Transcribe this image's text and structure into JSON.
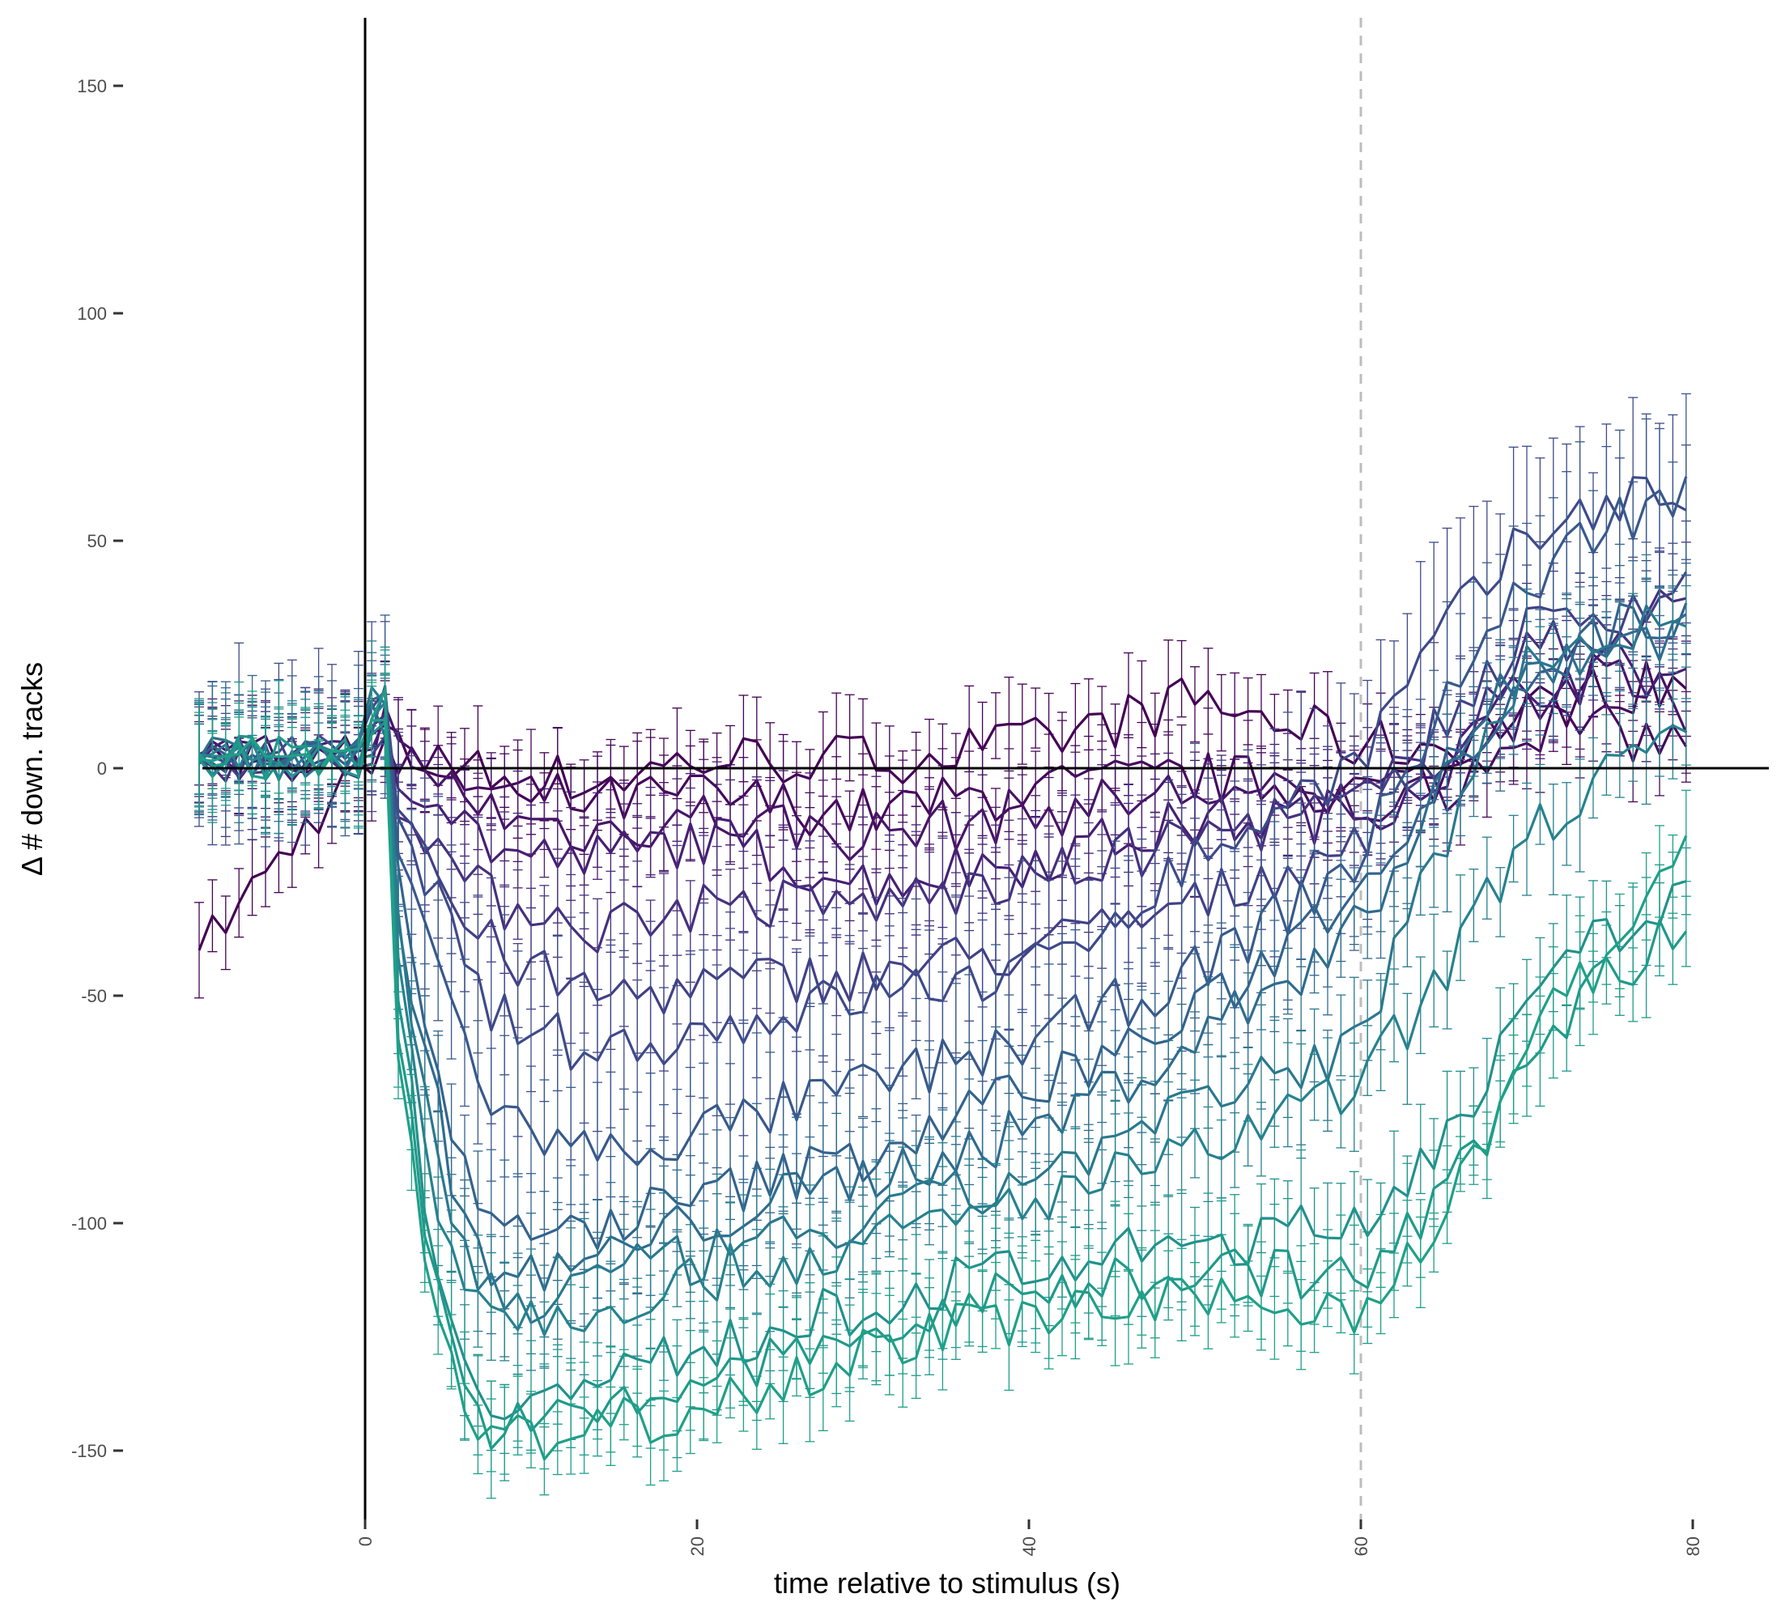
{
  "chart_data": {
    "type": "line",
    "title": "",
    "xlabel": "time relative to stimulus (s)",
    "ylabel": "Δ # down. tracks",
    "xlim": [
      -10,
      80
    ],
    "ylim": [
      -165,
      165
    ],
    "x_ticks": [
      0,
      20,
      40,
      60,
      80
    ],
    "y_ticks": [
      150,
      100,
      50,
      0,
      -50,
      -100,
      -150
    ],
    "x_tick_labels": [
      "0",
      "20",
      "40",
      "60",
      "80"
    ],
    "y_tick_labels": [
      "150",
      "100",
      "50",
      "0",
      "-50",
      "-100",
      "-150"
    ],
    "reference_lines": {
      "vertical_solid_x": 0,
      "vertical_dashed_x": 60,
      "horizontal_solid_y": 0
    },
    "grid": false,
    "legend": "none",
    "error_bars": true,
    "colors": [
      "#440154",
      "#46085C",
      "#481467",
      "#471F73",
      "#46307E",
      "#424086",
      "#3E4A89",
      "#38598C",
      "#33638D",
      "#2F6C8E",
      "#2A788E",
      "#26828E",
      "#21918C",
      "#1F9A8A",
      "#1FA088"
    ],
    "x_sample": [
      -10,
      0,
      1,
      2,
      4,
      6,
      8,
      10,
      14,
      20,
      30,
      40,
      50,
      60,
      65,
      70,
      75,
      80
    ],
    "series": [
      {
        "values": [
          -40,
          2,
          10,
          3,
          1,
          0,
          -2,
          -2,
          -3,
          2,
          2,
          5,
          15,
          5,
          5,
          12,
          18,
          18
        ],
        "error": 10
      },
      {
        "values": [
          3,
          2,
          9,
          2,
          0,
          -3,
          -6,
          -6,
          -8,
          -6,
          -10,
          -5,
          -2,
          -5,
          -2,
          10,
          8,
          5
        ],
        "error": 10
      },
      {
        "values": [
          2,
          3,
          12,
          2,
          -2,
          -5,
          -10,
          -12,
          -14,
          -10,
          -15,
          -10,
          -5,
          -8,
          -5,
          15,
          20,
          12
        ],
        "error": 10
      },
      {
        "values": [
          1,
          2,
          14,
          0,
          -5,
          -12,
          -18,
          -20,
          -20,
          -15,
          -25,
          -20,
          -12,
          -10,
          0,
          18,
          22,
          20
        ],
        "error": 12
      },
      {
        "values": [
          2,
          2,
          15,
          -5,
          -15,
          -25,
          -30,
          -30,
          -35,
          -30,
          -30,
          -25,
          -15,
          -8,
          5,
          25,
          30,
          38
        ],
        "error": 12
      },
      {
        "values": [
          3,
          2,
          16,
          -8,
          -20,
          -35,
          -40,
          -45,
          -50,
          -48,
          -45,
          -40,
          -30,
          -15,
          10,
          30,
          35,
          40
        ],
        "error": 14
      },
      {
        "values": [
          2,
          3,
          18,
          -10,
          -25,
          -45,
          -55,
          -58,
          -62,
          -58,
          -50,
          -45,
          -20,
          2,
          30,
          50,
          60,
          60
        ],
        "error": 20
      },
      {
        "values": [
          2,
          2,
          20,
          -15,
          -40,
          -60,
          -75,
          -80,
          -85,
          -80,
          -70,
          -60,
          -45,
          -20,
          15,
          40,
          55,
          60
        ],
        "error": 18
      },
      {
        "values": [
          3,
          3,
          22,
          -25,
          -60,
          -90,
          -100,
          -105,
          -100,
          -95,
          -85,
          -70,
          -55,
          -25,
          0,
          20,
          30,
          35
        ],
        "error": 14
      },
      {
        "values": [
          2,
          2,
          24,
          -30,
          -70,
          -100,
          -112,
          -112,
          -108,
          -100,
          -90,
          -80,
          -60,
          -35,
          0,
          22,
          28,
          30
        ],
        "error": 12
      },
      {
        "values": [
          2,
          3,
          25,
          -35,
          -80,
          -108,
          -115,
          -118,
          -112,
          -108,
          -100,
          -90,
          -75,
          -60,
          -15,
          25,
          30,
          32
        ],
        "error": 12
      },
      {
        "values": [
          3,
          2,
          26,
          -40,
          -90,
          -112,
          -118,
          -120,
          -118,
          -112,
          -105,
          -95,
          -85,
          -70,
          -45,
          -15,
          0,
          5
        ],
        "error": 12
      },
      {
        "values": [
          2,
          3,
          28,
          -50,
          -105,
          -130,
          -138,
          -140,
          -135,
          -128,
          -118,
          -110,
          -105,
          -100,
          -80,
          -55,
          -35,
          -30
        ],
        "error": 12
      },
      {
        "values": [
          3,
          2,
          29,
          -55,
          -110,
          -138,
          -145,
          -145,
          -142,
          -135,
          -125,
          -115,
          -110,
          -112,
          -95,
          -65,
          -45,
          -35
        ],
        "error": 12
      },
      {
        "values": [
          2,
          2,
          30,
          -60,
          -118,
          -142,
          -148,
          -148,
          -145,
          -140,
          -128,
          -120,
          -118,
          -118,
          -100,
          -60,
          -40,
          -15
        ],
        "error": 10
      }
    ]
  }
}
